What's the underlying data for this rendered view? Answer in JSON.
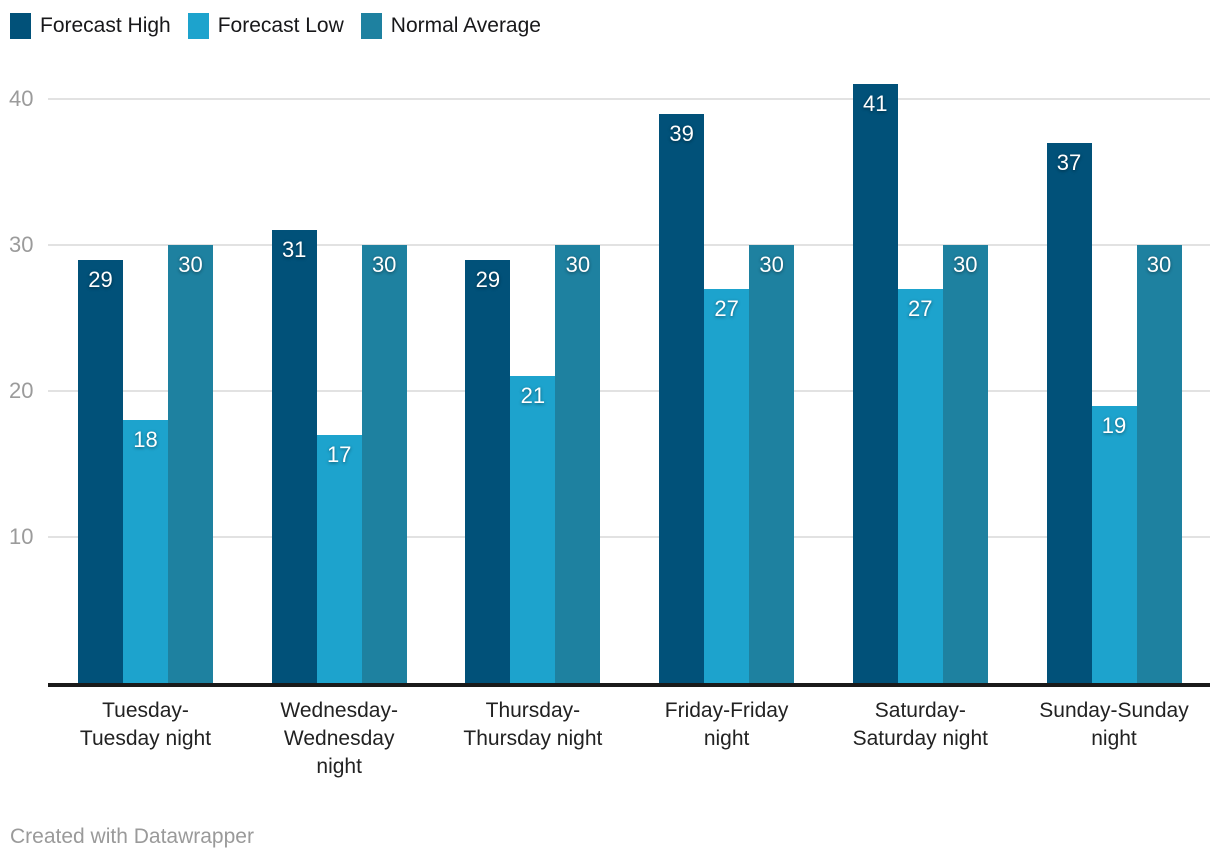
{
  "chart_data": {
    "type": "bar",
    "title": "",
    "categories": [
      "Tuesday-\nTuesday night",
      "Wednesday-\nWednesday\nnight",
      "Thursday-\nThursday night",
      "Friday-Friday\nnight",
      "Saturday-\nSaturday night",
      "Sunday-Sunday\nnight"
    ],
    "series": [
      {
        "name": "Forecast High",
        "color": "#015179",
        "values": [
          29,
          31,
          29,
          39,
          41,
          37
        ]
      },
      {
        "name": "Forecast Low",
        "color": "#1da3cd",
        "values": [
          18,
          17,
          21,
          27,
          27,
          19
        ]
      },
      {
        "name": "Normal Average",
        "color": "#1e81a0",
        "values": [
          30,
          30,
          30,
          30,
          30,
          30
        ]
      }
    ],
    "y_axis": {
      "ticks": [
        10,
        20,
        30,
        40
      ],
      "min": 0,
      "max": 42,
      "label": ""
    },
    "xlabel": "",
    "ylabel": "",
    "grid": true,
    "legend_position": "top-left",
    "value_labels": "inside-top"
  },
  "footer": {
    "credit": "Created with Datawrapper"
  }
}
